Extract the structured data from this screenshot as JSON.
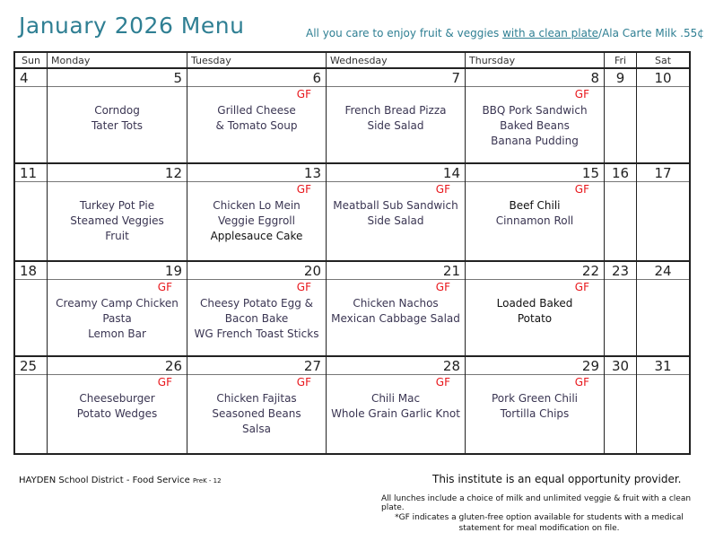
{
  "title": "January 2026 Menu",
  "tagline": {
    "pre": "All you care to enjoy fruit & veggies ",
    "underlined": "with a clean plate",
    "post": "/Ala Carte Milk .55¢"
  },
  "days": [
    "Sun",
    "Monday",
    "Tuesday",
    "Wednesday",
    "Thursday",
    "Fri",
    "Sat"
  ],
  "colors": {
    "title": "#2f7f93",
    "gf": "#e8161b",
    "menu_text": "#3a3552"
  },
  "weeks": [
    {
      "sun": "4",
      "fri": "9",
      "sat": "10",
      "days": [
        {
          "date": "5",
          "gf": "",
          "lines": [
            {
              "text": "Corndog"
            },
            {
              "text": "Tater Tots"
            }
          ]
        },
        {
          "date": "6",
          "gf": "GF",
          "lines": [
            {
              "text": "Grilled Cheese"
            },
            {
              "text": "& Tomato Soup"
            }
          ]
        },
        {
          "date": "7",
          "gf": "",
          "lines": [
            {
              "text": "French Bread Pizza"
            },
            {
              "text": "Side Salad"
            }
          ]
        },
        {
          "date": "8",
          "gf": "GF",
          "lines": [
            {
              "text": "BBQ Pork Sandwich"
            },
            {
              "text": "Baked Beans"
            },
            {
              "text": "Banana Pudding"
            }
          ]
        }
      ]
    },
    {
      "sun": "11",
      "fri": "16",
      "sat": "17",
      "days": [
        {
          "date": "12",
          "gf": "",
          "lines": [
            {
              "text": "Turkey Pot Pie"
            },
            {
              "text": "Steamed Veggies"
            },
            {
              "text": "Fruit"
            }
          ]
        },
        {
          "date": "13",
          "gf": "GF",
          "lines": [
            {
              "text": "Chicken Lo Mein"
            },
            {
              "text": "Veggie Eggroll"
            },
            {
              "text": "Applesauce Cake",
              "dark": true
            }
          ]
        },
        {
          "date": "14",
          "gf": "GF",
          "lines": [
            {
              "text": "Meatball Sub Sandwich"
            },
            {
              "text": "Side Salad"
            }
          ]
        },
        {
          "date": "15",
          "gf": "GF",
          "lines": [
            {
              "text": "Beef Chili",
              "dark": true
            },
            {
              "text": "Cinnamon Roll"
            }
          ]
        }
      ]
    },
    {
      "sun": "18",
      "fri": "23",
      "sat": "24",
      "days": [
        {
          "date": "19",
          "gf": "GF",
          "lines": [
            {
              "text": "Creamy Camp Chicken"
            },
            {
              "text": "Pasta"
            },
            {
              "text": "Lemon Bar"
            }
          ]
        },
        {
          "date": "20",
          "gf": "GF",
          "lines": [
            {
              "text": "Cheesy Potato Egg &"
            },
            {
              "text": "Bacon Bake"
            },
            {
              "text": "WG French Toast Sticks"
            }
          ]
        },
        {
          "date": "21",
          "gf": "GF",
          "lines": [
            {
              "text": "Chicken Nachos"
            },
            {
              "text": "Mexican Cabbage Salad"
            }
          ]
        },
        {
          "date": "22",
          "gf": "GF",
          "lines": [
            {
              "text": "Loaded Baked",
              "dark": true
            },
            {
              "text": "Potato",
              "dark": true
            }
          ]
        }
      ]
    },
    {
      "sun": "25",
      "fri": "30",
      "sat": "31",
      "days": [
        {
          "date": "26",
          "gf": "GF",
          "lines": [
            {
              "text": "Cheeseburger"
            },
            {
              "text": "Potato Wedges"
            }
          ]
        },
        {
          "date": "27",
          "gf": "GF",
          "lines": [
            {
              "text": "Chicken Fajitas"
            },
            {
              "text": "Seasoned Beans"
            },
            {
              "text": "Salsa"
            }
          ]
        },
        {
          "date": "28",
          "gf": "GF",
          "lines": [
            {
              "text": "Chili Mac"
            },
            {
              "text": "Whole Grain Garlic Knot"
            }
          ]
        },
        {
          "date": "29",
          "gf": "GF",
          "lines": [
            {
              "text": "Pork Green Chili"
            },
            {
              "text": "Tortilla Chips"
            }
          ]
        }
      ]
    }
  ],
  "footer": {
    "district": "HAYDEN School District - Food Service ",
    "grades": "PreK - 12",
    "equal": "This institute is an equal opportunity provider.",
    "lunches": "All lunches include a choice of milk and unlimited veggie & fruit with a clean plate.",
    "gf_note": "*GF indicates a gluten-free option available for students with a medical statement for meal modification on file."
  }
}
